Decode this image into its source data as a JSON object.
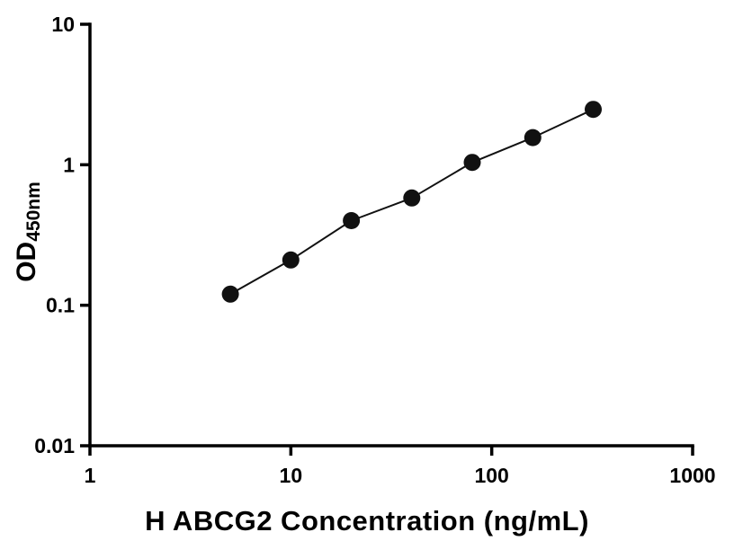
{
  "chart_data": {
    "type": "line",
    "title": "",
    "xlabel": "H ABCG2 Concentration (ng/mL)",
    "ylabel": "OD",
    "ylabel_subscript": "450nm",
    "x": [
      5,
      10,
      20,
      40,
      80,
      160,
      320
    ],
    "y": [
      0.12,
      0.21,
      0.4,
      0.58,
      1.04,
      1.56,
      2.48
    ],
    "xscale": "log",
    "yscale": "log",
    "xlim": [
      1,
      1000
    ],
    "ylim": [
      0.01,
      10
    ],
    "x_ticks": [
      "1",
      "10",
      "100",
      "1000"
    ],
    "y_ticks": [
      "0.01",
      "0.1",
      "1",
      "10"
    ],
    "grid": false,
    "legend": "none",
    "marker_color": "#111111",
    "line_color": "#111111",
    "axis_color": "#000000",
    "background_color": "#ffffff"
  }
}
